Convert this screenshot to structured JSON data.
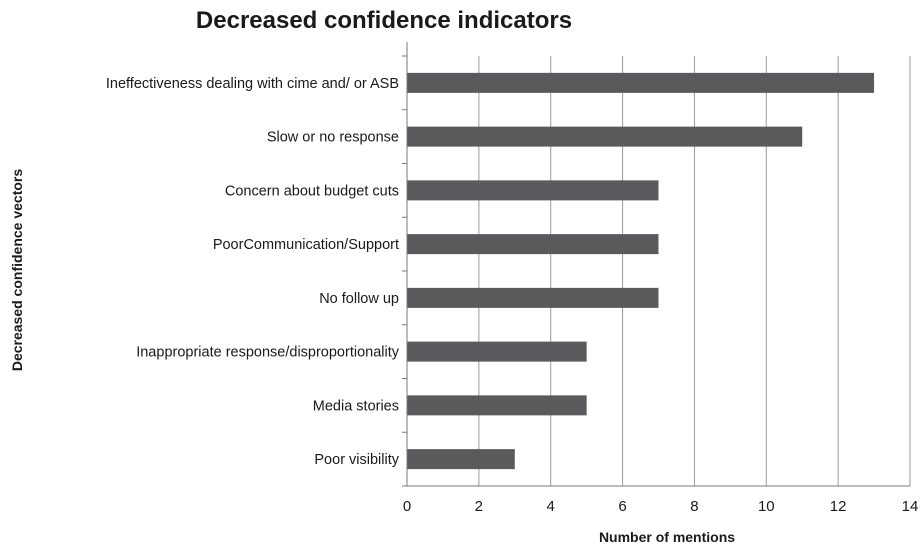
{
  "chart_data": {
    "type": "bar",
    "orientation": "horizontal",
    "title": "Decreased confidence indicators",
    "xlabel": "Number of mentions",
    "ylabel": "Decreased confidence vectors",
    "categories": [
      "Ineffectiveness dealing with cime and/ or ASB",
      "Slow or no response",
      "Concern about budget cuts",
      "PoorCommunication/Support",
      "No follow up",
      "Inappropriate response/disproportionality",
      "Media stories",
      "Poor visibility"
    ],
    "values": [
      13,
      11,
      7,
      7,
      7,
      5,
      5,
      3
    ],
    "xlim": [
      0,
      14
    ],
    "xticks": [
      "0",
      "2",
      "4",
      "6",
      "8",
      "10",
      "12",
      "14"
    ],
    "grid": true,
    "legend": "none",
    "colors": {
      "bar": "#5a5a5c"
    }
  }
}
